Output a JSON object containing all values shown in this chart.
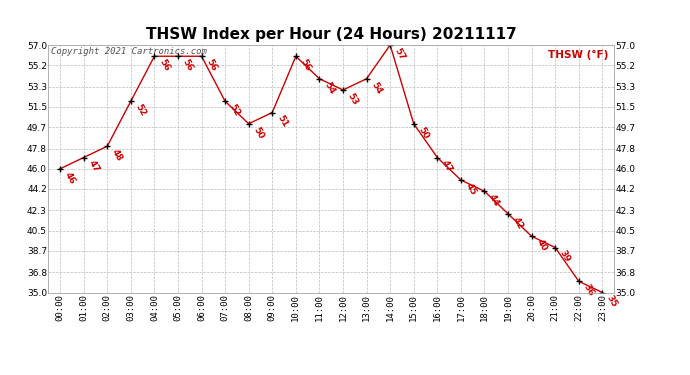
{
  "title": "THSW Index per Hour (24 Hours) 20211117",
  "copyright": "Copyright 2021 Cartronics.com",
  "legend_label": "THSW (°F)",
  "hours": [
    0,
    1,
    2,
    3,
    4,
    5,
    6,
    7,
    8,
    9,
    10,
    11,
    12,
    13,
    14,
    15,
    16,
    17,
    18,
    19,
    20,
    21,
    22,
    23
  ],
  "hour_labels": [
    "00:00",
    "01:00",
    "02:00",
    "03:00",
    "04:00",
    "05:00",
    "06:00",
    "07:00",
    "08:00",
    "09:00",
    "10:00",
    "11:00",
    "12:00",
    "13:00",
    "14:00",
    "15:00",
    "16:00",
    "17:00",
    "18:00",
    "19:00",
    "20:00",
    "21:00",
    "22:00",
    "23:00"
  ],
  "values": [
    46,
    47,
    48,
    52,
    56,
    56,
    56,
    52,
    50,
    51,
    56,
    54,
    53,
    54,
    57,
    50,
    47,
    45,
    44,
    42,
    40,
    39,
    36,
    35
  ],
  "line_color": "#cc0000",
  "marker_color": "#000000",
  "label_color": "#cc0000",
  "bg_color": "#ffffff",
  "grid_color": "#bbbbbb",
  "ylim_min": 35.0,
  "ylim_max": 57.0,
  "yticks": [
    35.0,
    36.8,
    38.7,
    40.5,
    42.3,
    44.2,
    46.0,
    47.8,
    49.7,
    51.5,
    53.3,
    55.2,
    57.0
  ],
  "title_fontsize": 11,
  "label_fontsize": 6.5,
  "tick_fontsize": 6.5,
  "copyright_fontsize": 6.5
}
